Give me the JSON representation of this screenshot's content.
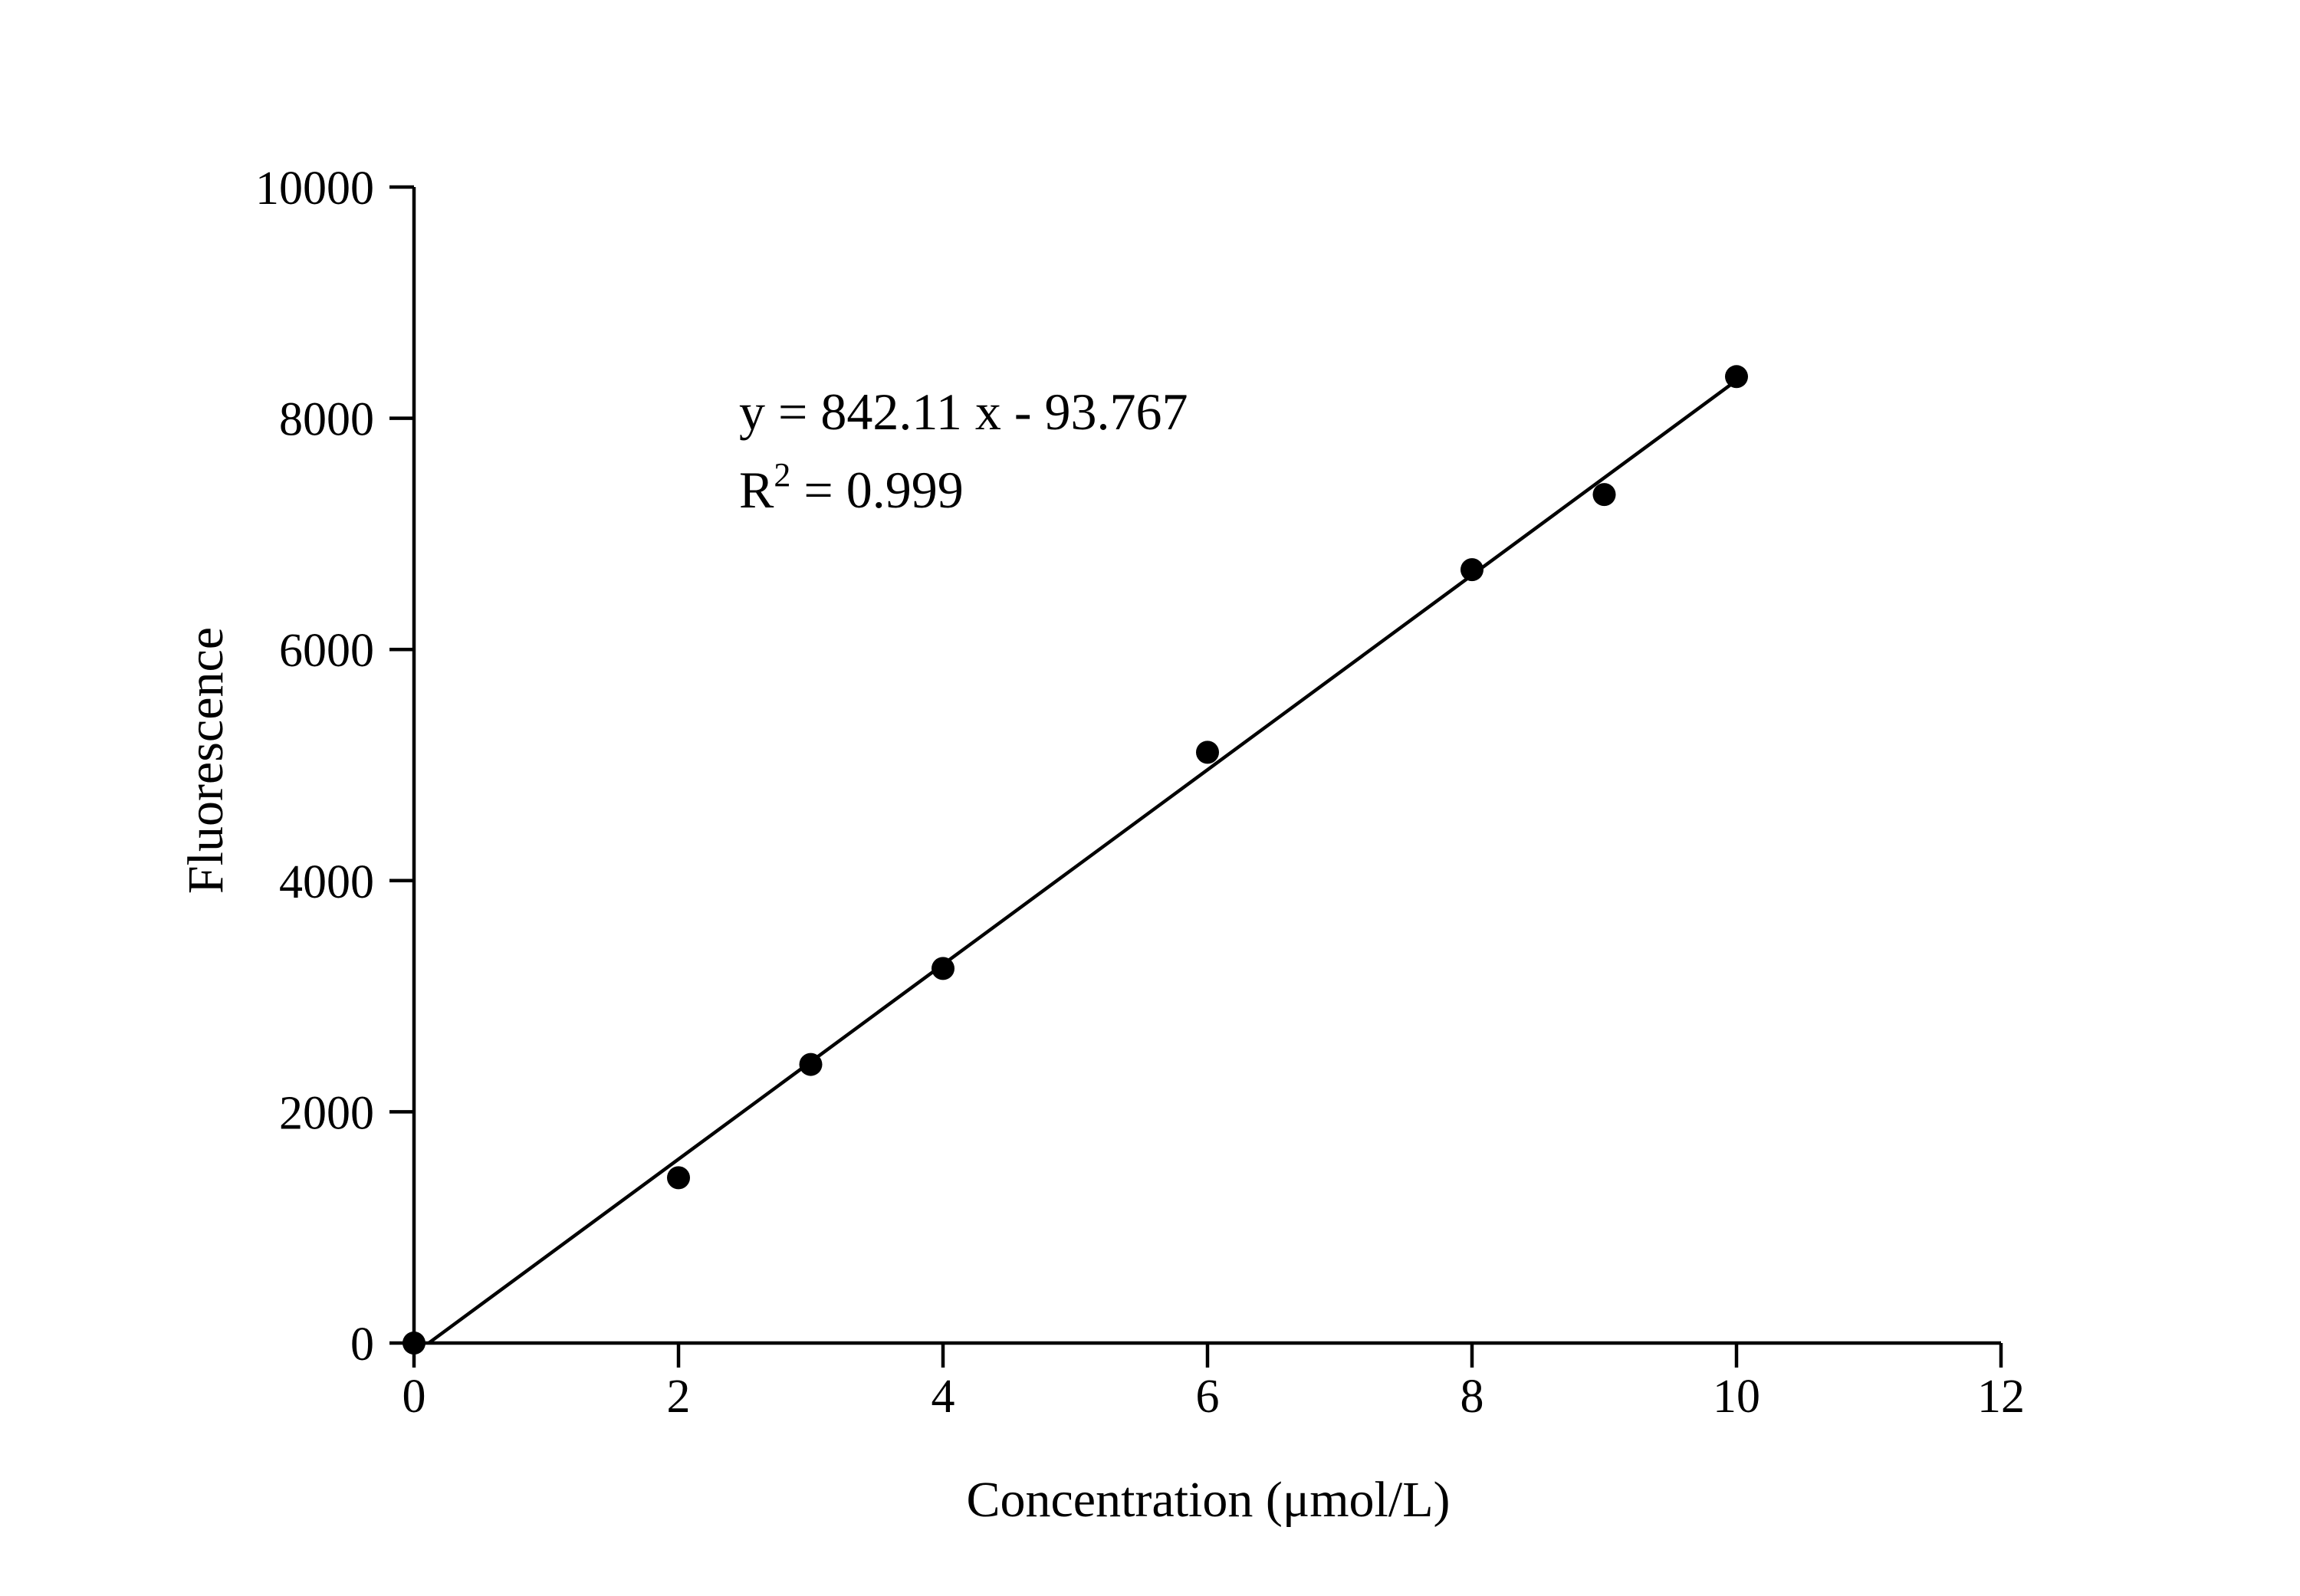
{
  "chart_data": {
    "type": "scatter",
    "xlabel": "Concentration (μmol/L)",
    "ylabel": "Fluorescence",
    "xlim": [
      0,
      12
    ],
    "ylim": [
      0,
      10000
    ],
    "xticks": [
      0,
      2,
      4,
      6,
      8,
      10,
      12
    ],
    "yticks": [
      0,
      2000,
      4000,
      6000,
      8000,
      10000
    ],
    "grid": false,
    "points": [
      {
        "x": 0,
        "y": 0
      },
      {
        "x": 2,
        "y": 1430
      },
      {
        "x": 3,
        "y": 2410
      },
      {
        "x": 4,
        "y": 3240
      },
      {
        "x": 6,
        "y": 5110
      },
      {
        "x": 8,
        "y": 6690
      },
      {
        "x": 9,
        "y": 7340
      },
      {
        "x": 10,
        "y": 8360
      }
    ],
    "fit": {
      "slope": 842.11,
      "intercept": -93.767,
      "equation_text": "y = 842.11 x - 93.767",
      "r2_prefix": "R",
      "r2_exponent": "2",
      "r2_suffix": " = 0.999"
    }
  }
}
